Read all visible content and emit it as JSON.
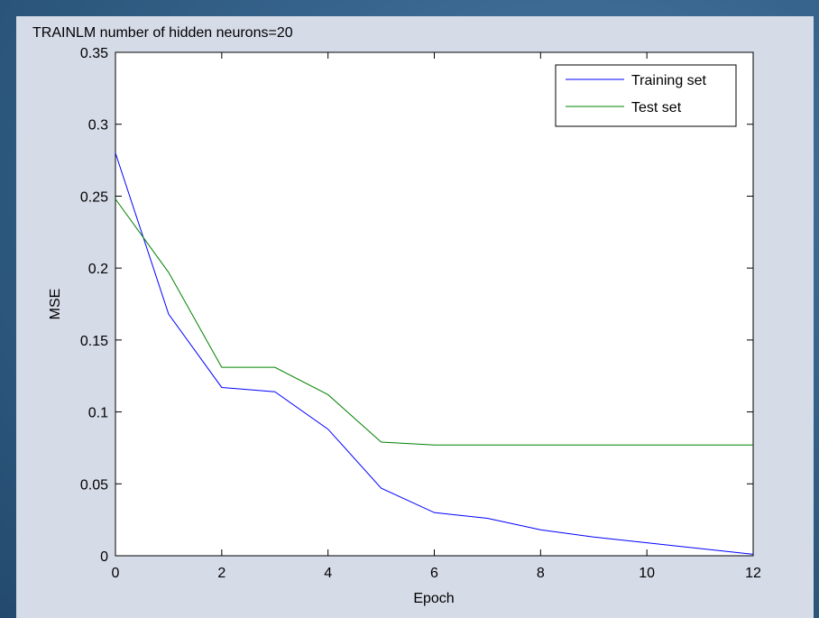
{
  "chart_data": {
    "type": "line",
    "title": "TRAINLM number of hidden neurons=20",
    "xlabel": "Epoch",
    "ylabel": "MSE",
    "xlim": [
      0,
      12
    ],
    "ylim": [
      0,
      0.35
    ],
    "xticks": [
      0,
      2,
      4,
      6,
      8,
      10,
      12
    ],
    "yticks": [
      0,
      0.05,
      0.1,
      0.15,
      0.2,
      0.25,
      0.3,
      0.35
    ],
    "xtick_labels": [
      "0",
      "2",
      "4",
      "6",
      "8",
      "10",
      "12"
    ],
    "ytick_labels": [
      "0",
      "0.05",
      "0.1",
      "0.15",
      "0.2",
      "0.25",
      "0.3",
      "0.35"
    ],
    "grid": false,
    "legend_position": "top-right",
    "x": [
      0,
      1,
      2,
      3,
      4,
      5,
      6,
      7,
      8,
      9,
      10,
      11,
      12
    ],
    "series": [
      {
        "name": "Training set",
        "color": "#0000ff",
        "values": [
          0.28,
          0.168,
          0.117,
          0.114,
          0.088,
          0.047,
          0.03,
          0.026,
          0.018,
          0.013,
          0.009,
          0.005,
          0.001
        ]
      },
      {
        "name": "Test set",
        "color": "#008000",
        "values": [
          0.248,
          0.197,
          0.131,
          0.131,
          0.112,
          0.079,
          0.077,
          0.077,
          0.077,
          0.077,
          0.077,
          0.077,
          0.077
        ]
      }
    ]
  }
}
